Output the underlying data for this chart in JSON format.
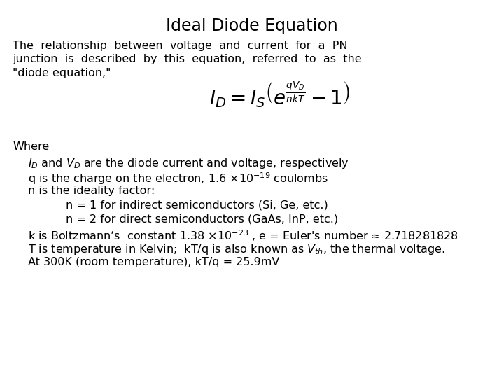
{
  "title": "Ideal Diode Equation",
  "title_fontsize": 17,
  "title_weight": "normal",
  "bg_color": "#ffffff",
  "text_color": "#000000",
  "body_font": "DejaVu Sans",
  "body_fontsize": 11.5,
  "equation_fontsize": 20,
  "intro_lines": [
    "The  relationship  between  voltage  and  current  for  a  PN",
    "junction  is  described  by  this  equation,  referred  to  as  the",
    "\"diode equation,\""
  ],
  "equation": "$I_D = I_S\\left(e^{\\frac{qV_D}{nkT}} - 1\\right)$",
  "where_label": "Where",
  "bullets": [
    [
      "$I_D$ and $V_D$ are the diode current and voltage, respectively",
      0.055
    ],
    [
      "q is the charge on the electron, 1.6 ×10$^{-19}$ coulombs",
      0.055
    ],
    [
      "n is the ideality factor:",
      0.055
    ],
    [
      "n = 1 for indirect semiconductors (Si, Ge, etc.)",
      0.13
    ],
    [
      "n = 2 for direct semiconductors (GaAs, InP, etc.)",
      0.13
    ],
    [
      "k is Boltzmann’s  constant 1.38 ×10$^{-23}$ , e = Euler's number ≈ 2.718281828",
      0.055
    ],
    [
      "T is temperature in Kelvin;  kT/q is also known as $V_{th}$, the thermal voltage.",
      0.055
    ],
    [
      "At 300K (room temperature), kT/q = 25.9mV",
      0.055
    ]
  ]
}
